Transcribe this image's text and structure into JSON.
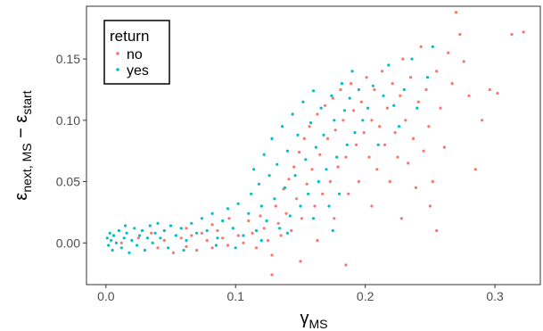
{
  "chart_data": {
    "type": "scatter",
    "xlabel": {
      "main": "γ",
      "sub": "MS"
    },
    "ylabel": {
      "p1": "ε",
      "s1": "next, MS",
      "op": " − ",
      "p2": "ε",
      "s2": "start"
    },
    "xlim": [
      -0.015,
      0.335
    ],
    "ylim": [
      -0.034,
      0.193
    ],
    "xticks": [
      0.0,
      0.1,
      0.2,
      0.3
    ],
    "xtick_labels": [
      "0.0",
      "0.1",
      "0.2",
      "0.3"
    ],
    "yticks": [
      0.0,
      0.05,
      0.1,
      0.15
    ],
    "ytick_labels": [
      "0.00",
      "0.05",
      "0.10",
      "0.15"
    ],
    "grid": false,
    "legend": {
      "title": "return",
      "position": "top-left inside"
    },
    "series": [
      {
        "name": "no",
        "color": "#F8766D",
        "points": [
          [
            0.012,
            0.0
          ],
          [
            0.025,
            0.004
          ],
          [
            0.04,
            -0.004
          ],
          [
            0.045,
            0.002
          ],
          [
            0.052,
            -0.008
          ],
          [
            0.058,
            0.004
          ],
          [
            0.062,
            -0.003
          ],
          [
            0.066,
            0.006
          ],
          [
            0.07,
            -0.006
          ],
          [
            0.074,
            0.008
          ],
          [
            0.078,
            0.002
          ],
          [
            0.082,
            -0.004
          ],
          [
            0.086,
            0.01
          ],
          [
            0.09,
            0.004
          ],
          [
            0.094,
            -0.002
          ],
          [
            0.098,
            0.012
          ],
          [
            0.102,
            0.006
          ],
          [
            0.106,
            0.0
          ],
          [
            0.11,
            0.018
          ],
          [
            0.113,
            0.008
          ],
          [
            0.116,
            -0.004
          ],
          [
            0.119,
            0.022
          ],
          [
            0.122,
            0.012
          ],
          [
            0.125,
            0.002
          ],
          [
            0.128,
            -0.01
          ],
          [
            0.131,
            0.03
          ],
          [
            0.133,
            0.016
          ],
          [
            0.135,
            0.006
          ],
          [
            0.137,
            0.044
          ],
          [
            0.139,
            0.024
          ],
          [
            0.141,
            0.052
          ],
          [
            0.143,
            0.01
          ],
          [
            0.145,
            0.062
          ],
          [
            0.147,
            0.036
          ],
          [
            0.149,
            0.074
          ],
          [
            0.151,
            0.02
          ],
          [
            0.153,
            0.085
          ],
          [
            0.155,
            0.048
          ],
          [
            0.157,
            0.095
          ],
          [
            0.159,
            0.06
          ],
          [
            0.161,
            0.03
          ],
          [
            0.163,
            0.105
          ],
          [
            0.165,
            0.072
          ],
          [
            0.167,
            0.04
          ],
          [
            0.169,
            0.112
          ],
          [
            0.171,
            0.085
          ],
          [
            0.173,
            0.05
          ],
          [
            0.175,
            0.118
          ],
          [
            0.177,
            0.092
          ],
          [
            0.179,
            0.062
          ],
          [
            0.181,
            0.125
          ],
          [
            0.183,
            0.1
          ],
          [
            0.185,
            0.07
          ],
          [
            0.187,
            0.04
          ],
          [
            0.189,
            0.13
          ],
          [
            0.191,
            0.108
          ],
          [
            0.193,
            0.08
          ],
          [
            0.195,
            0.05
          ],
          [
            0.197,
            0.115
          ],
          [
            0.199,
            0.09
          ],
          [
            0.201,
            0.135
          ],
          [
            0.203,
            0.07
          ],
          [
            0.205,
            0.1
          ],
          [
            0.207,
            0.125
          ],
          [
            0.209,
            0.06
          ],
          [
            0.211,
            0.095
          ],
          [
            0.213,
            0.14
          ],
          [
            0.215,
            0.08
          ],
          [
            0.217,
            0.11
          ],
          [
            0.219,
            0.05
          ],
          [
            0.221,
            0.13
          ],
          [
            0.223,
            0.09
          ],
          [
            0.225,
            0.07
          ],
          [
            0.227,
            0.12
          ],
          [
            0.229,
            0.15
          ],
          [
            0.231,
            0.1
          ],
          [
            0.233,
            0.065
          ],
          [
            0.235,
            0.135
          ],
          [
            0.237,
            0.085
          ],
          [
            0.239,
            0.045
          ],
          [
            0.241,
            0.115
          ],
          [
            0.243,
            0.16
          ],
          [
            0.245,
            0.075
          ],
          [
            0.247,
            0.125
          ],
          [
            0.249,
            0.095
          ],
          [
            0.252,
            0.05
          ],
          [
            0.255,
            0.14
          ],
          [
            0.258,
            0.11
          ],
          [
            0.261,
            0.078
          ],
          [
            0.264,
            0.155
          ],
          [
            0.267,
            0.13
          ],
          [
            0.27,
            0.188
          ],
          [
            0.273,
            0.17
          ],
          [
            0.276,
            0.148
          ],
          [
            0.28,
            0.12
          ],
          [
            0.285,
            0.06
          ],
          [
            0.29,
            0.1
          ],
          [
            0.296,
            0.125
          ],
          [
            0.302,
            0.122
          ],
          [
            0.313,
            0.17
          ],
          [
            0.322,
            0.172
          ],
          [
            0.15,
            -0.015
          ],
          [
            0.185,
            -0.018
          ],
          [
            0.128,
            -0.026
          ],
          [
            0.205,
            0.03
          ],
          [
            0.228,
            0.02
          ],
          [
            0.255,
            0.01
          ],
          [
            0.25,
            0.03
          ],
          [
            0.176,
            0.02
          ],
          [
            0.163,
            0.002
          ],
          [
            0.082,
            0.015
          ],
          [
            0.095,
            0.02
          ],
          [
            0.062,
            0.012
          ],
          [
            0.035,
            0.008
          ]
        ]
      },
      {
        "name": "yes",
        "color": "#00BFC4",
        "points": [
          [
            0.001,
            0.004
          ],
          [
            0.002,
            -0.002
          ],
          [
            0.003,
            0.008
          ],
          [
            0.004,
            0.002
          ],
          [
            0.005,
            -0.006
          ],
          [
            0.006,
            0.006
          ],
          [
            0.008,
            0.0
          ],
          [
            0.01,
            0.01
          ],
          [
            0.012,
            -0.004
          ],
          [
            0.014,
            0.004
          ],
          [
            0.016,
            0.008
          ],
          [
            0.018,
            -0.008
          ],
          [
            0.02,
            0.002
          ],
          [
            0.022,
            0.012
          ],
          [
            0.024,
            -0.002
          ],
          [
            0.026,
            0.006
          ],
          [
            0.028,
            0.01
          ],
          [
            0.03,
            -0.006
          ],
          [
            0.032,
            0.004
          ],
          [
            0.034,
            0.014
          ],
          [
            0.036,
            0.0
          ],
          [
            0.038,
            0.008
          ],
          [
            0.04,
            0.016
          ],
          [
            0.042,
            0.004
          ],
          [
            0.045,
            0.01
          ],
          [
            0.048,
            -0.004
          ],
          [
            0.05,
            0.014
          ],
          [
            0.054,
            0.006
          ],
          [
            0.058,
            0.012
          ],
          [
            0.062,
            0.002
          ],
          [
            0.066,
            0.016
          ],
          [
            0.07,
            0.008
          ],
          [
            0.074,
            0.02
          ],
          [
            0.078,
            0.01
          ],
          [
            0.082,
            0.024
          ],
          [
            0.086,
            0.004
          ],
          [
            0.09,
            0.018
          ],
          [
            0.094,
            0.028
          ],
          [
            0.098,
            0.012
          ],
          [
            0.102,
            0.032
          ],
          [
            0.106,
            0.006
          ],
          [
            0.11,
            0.024
          ],
          [
            0.112,
            0.04
          ],
          [
            0.114,
            0.06
          ],
          [
            0.116,
            0.01
          ],
          [
            0.118,
            0.048
          ],
          [
            0.12,
            0.03
          ],
          [
            0.122,
            0.072
          ],
          [
            0.124,
            0.018
          ],
          [
            0.126,
            0.055
          ],
          [
            0.128,
            0.085
          ],
          [
            0.13,
            0.036
          ],
          [
            0.132,
            0.064
          ],
          [
            0.134,
            0.012
          ],
          [
            0.136,
            0.095
          ],
          [
            0.138,
            0.045
          ],
          [
            0.14,
            0.075
          ],
          [
            0.142,
            0.022
          ],
          [
            0.144,
            0.105
          ],
          [
            0.146,
            0.055
          ],
          [
            0.148,
            0.088
          ],
          [
            0.15,
            0.03
          ],
          [
            0.152,
            0.115
          ],
          [
            0.154,
            0.068
          ],
          [
            0.156,
            0.04
          ],
          [
            0.158,
            0.098
          ],
          [
            0.16,
            0.124
          ],
          [
            0.162,
            0.078
          ],
          [
            0.164,
            0.05
          ],
          [
            0.166,
            0.11
          ],
          [
            0.168,
            0.088
          ],
          [
            0.17,
            0.06
          ],
          [
            0.172,
            0.03
          ],
          [
            0.174,
            0.12
          ],
          [
            0.176,
            0.1
          ],
          [
            0.178,
            0.07
          ],
          [
            0.18,
            0.04
          ],
          [
            0.182,
            0.13
          ],
          [
            0.184,
            0.108
          ],
          [
            0.186,
            0.08
          ],
          [
            0.188,
            0.118
          ],
          [
            0.19,
            0.14
          ],
          [
            0.192,
            0.09
          ],
          [
            0.195,
            0.125
          ],
          [
            0.198,
            0.1
          ],
          [
            0.202,
            0.11
          ],
          [
            0.206,
            0.128
          ],
          [
            0.21,
            0.08
          ],
          [
            0.214,
            0.12
          ],
          [
            0.218,
            0.145
          ],
          [
            0.222,
            0.112
          ],
          [
            0.226,
            0.095
          ],
          [
            0.23,
            0.125
          ],
          [
            0.236,
            0.15
          ],
          [
            0.24,
            0.11
          ],
          [
            0.248,
            0.135
          ],
          [
            0.252,
            0.16
          ],
          [
            0.12,
            0.002
          ],
          [
            0.14,
            0.008
          ],
          [
            0.16,
            0.02
          ],
          [
            0.175,
            0.01
          ],
          [
            0.1,
            -0.004
          ],
          [
            0.085,
            -0.002
          ],
          [
            0.06,
            -0.006
          ],
          [
            0.015,
            0.014
          ]
        ]
      }
    ]
  }
}
